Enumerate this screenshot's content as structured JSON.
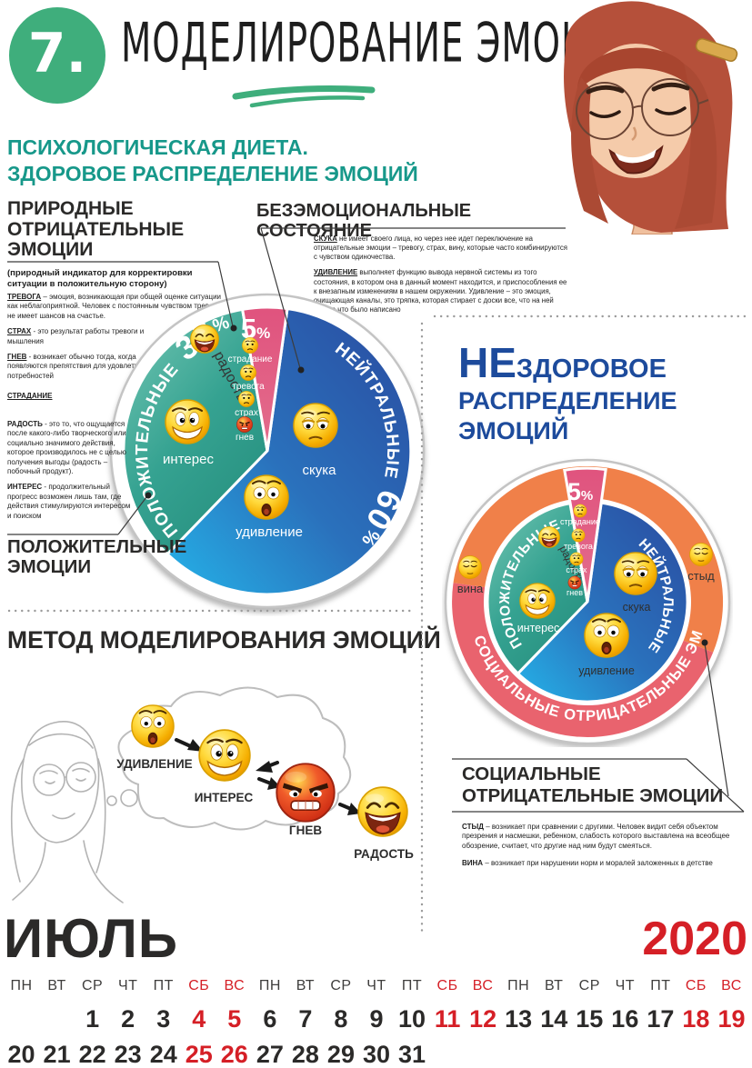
{
  "header": {
    "number": "7.",
    "title": "МОДЕЛИРОВАНИЕ ЭМОЦИЙ.",
    "accent_green": "#3fae7c"
  },
  "healthy": {
    "title_line1": "ПСИХОЛОГИЧЕСКАЯ ДИЕТА.",
    "title_line2": "ЗДОРОВОЕ РАСПРЕДЕЛЕНИЕ ЭМОЦИЙ",
    "natural_negative": {
      "title_l1": "ПРИРОДНЫЕ",
      "title_l2": "ОТРИЦАТЕЛЬНЫЕ",
      "title_l3": "ЭМОЦИИ",
      "subtitle": "(природный индикатор для корректировки ситуации в положительную сторону)",
      "items": [
        {
          "term": "ТРЕВОГА",
          "text": " – эмоция, возникающая при общей оценке ситуации как неблагоприятной.  Человек с постоянным чувством тревоги не имеет шансов на счастье."
        },
        {
          "term": "СТРАХ",
          "text": " - это результат работы тревоги и мышления"
        },
        {
          "term": "ГНЕВ",
          "text": " - возникает обычно тогда, когда появляются препятствия для удовлетворения потребностей"
        },
        {
          "term": "СТРАДАНИЕ",
          "text": ""
        }
      ]
    },
    "unemotional": {
      "title": "БЕЗЭМОЦИОНАЛЬНЫЕ СОСТОЯНИЕ",
      "items": [
        {
          "term": "СКУКА",
          "text": "  не имеет своего лица, но через нее идет переключение на отрицательные эмоции – тревогу, страх, вину, которые часто комбинируются с чувством одиночества."
        },
        {
          "term": "УДИВЛЕНИЕ",
          "text": "  выполняет функцию вывода нервной системы из того состояния, в котором она в данный момент находится, и приспособления ее к внезапным изменениям в нашем окружении. Удивление – это эмоция, очищающая каналы, это тряпка, которая стирает с доски все, что на ней только что было написано"
        }
      ]
    },
    "positive_notes": [
      {
        "term": "РАДОСТЬ",
        "text": " - это то, что ощущается после какого-либо творческого или социально значимого действия, которое производилось не с целью получения выгоды (радость – побочный продукт)."
      },
      {
        "term": "ИНТЕРЕС",
        "text": " - продолжительный прогресс возможен лишь там, где действия стимулируются интересом и поиском"
      }
    ],
    "positive_label_l1": "ПОЛОЖИТЕЛЬНЫЕ",
    "positive_label_l2": "ЭМОЦИИ"
  },
  "unhealthy": {
    "title_big": "НЕ",
    "title_small": "ЗДОРОВОЕ",
    "title_line2": "РАСПРЕДЕЛЕНИЕ",
    "title_line3": "ЭМОЦИЙ",
    "social": {
      "title_l1": "СОЦИАЛЬНЫЕ",
      "title_l2": "ОТРИЦАТЕЛЬНЫЕ ЭМОЦИИ",
      "items": [
        {
          "term": "СТЫД",
          "text": " – возникает при сравнении с другими. Человек видит себя объектом презрения и насмешки, ребенком, слабость которого выставлена на всеобщее обозрение, считает, что другие над ним будут смеяться."
        },
        {
          "term": "ВИНА",
          "text": " – возникает при нарушении норм и моралей заложенных в детстве"
        }
      ]
    }
  },
  "method": {
    "title": "МЕТОД МОДЕЛИРОВАНИЯ ЭМОЦИЙ",
    "steps": [
      "УДИВЛЕНИЕ",
      "ИНТЕРЕС",
      "ГНЕВ",
      "РАДОСТЬ"
    ]
  },
  "chart_data": [
    {
      "type": "pie",
      "title": "ЗДОРОВОЕ РАСПРЕДЕЛЕНИЕ ЭМОЦИЙ",
      "legend_position": "on-slices",
      "grid": false,
      "slices": [
        {
          "label": "ПОЛОЖИТЕЛЬНЫЕ",
          "value": 35,
          "color": "#2f9e8e",
          "emotions": [
            "радость",
            "интерес"
          ]
        },
        {
          "label": "ПРИРОДНЫЕ ОТРИЦАТЕЛЬНЫЕ",
          "value": 5,
          "color": "#e25b7e",
          "emotions": [
            "страдание",
            "тревога",
            "страх",
            "гнев"
          ]
        },
        {
          "label": "НЕЙТРАЛЬНЫЕ",
          "value": 60,
          "color": "#2a67ae",
          "emotions": [
            "скука",
            "удивление"
          ]
        }
      ],
      "display": {
        "arc_positive": "ПОЛОЖИТЕЛЬНЫЕ",
        "pos_pct": " 35",
        "arc_neutral": "НЕЙТРАЛЬНЫЕ",
        "neu_pct": " 60",
        "pct_sign": "%",
        "small_pct": "5",
        "radost": "радость",
        "interes": "интерес",
        "skuka": "скука",
        "udivlenie": "удивление",
        "stradanie": "страдание",
        "trevoga": "тревога",
        "strah": "страх",
        "gnev": "гнев"
      }
    },
    {
      "type": "pie",
      "title": "НЕЗДОРОВОЕ РАСПРЕДЕЛЕНИЕ ЭМОЦИЙ",
      "legend_position": "on-slices",
      "grid": false,
      "slices": [
        {
          "label": "ПОЛОЖИТЕЛЬНЫЕ",
          "value": 35,
          "color": "#2f9e8e",
          "emotions": [
            "радость",
            "интерес"
          ]
        },
        {
          "label": "ПРИРОДНЫЕ ОТРИЦАТЕЛЬНЫЕ",
          "value": 5,
          "color": "#e25b7e",
          "emotions": [
            "страдание",
            "тревога",
            "страх",
            "гнев"
          ]
        },
        {
          "label": "НЕЙТРАЛЬНЫЕ",
          "value": 60,
          "color": "#2a67ae",
          "emotions": [
            "скука",
            "удивление"
          ]
        }
      ],
      "ring": {
        "label": "СОЦИАЛЬНЫЕ ОТРИЦАТЕЛЬНЫЕ ЭМОЦИИ",
        "colors": [
          "#f08049",
          "#e9636e"
        ],
        "emotions": [
          "вина",
          "стыд"
        ]
      },
      "display": {
        "arc_positive": "ПОЛОЖИТЕЛЬНЫЕ",
        "arc_neutral": "НЕЙТРАЛЬНЫЕ",
        "ring_label": "СОЦИАЛЬНЫЕ  ОТРИЦАТЕЛЬНЫЕ  ЭМОЦИИ",
        "small_pct": "5",
        "pct_sign": "%",
        "radost": "радость",
        "interes": "интерес",
        "skuka": "скука",
        "udivlenie": "удивление",
        "stradanie": "страдание",
        "trevoga": "тревога",
        "strah": "страх",
        "gnev": "гнев",
        "vina": "вина",
        "styd": "стыд"
      }
    }
  ],
  "calendar": {
    "month": "ИЮЛЬ",
    "year": "2020",
    "weekend_color": "#d51f26",
    "weeks_shown": 3,
    "day_names": [
      "ПН",
      "ВТ",
      "СР",
      "ЧТ",
      "ПТ",
      "СБ",
      "ВС"
    ],
    "row1": [
      "",
      "",
      "1",
      "2",
      "3",
      "4",
      "5",
      "6",
      "7",
      "8",
      "9",
      "10",
      "11",
      "12",
      "13",
      "14",
      "15",
      "16",
      "17",
      "18",
      "19"
    ],
    "row2": [
      "20",
      "21",
      "22",
      "23",
      "24",
      "25",
      "26",
      "27",
      "28",
      "29",
      "30",
      "31"
    ],
    "red_dates": [
      "4",
      "5",
      "11",
      "12",
      "18",
      "19",
      "25",
      "26"
    ]
  }
}
